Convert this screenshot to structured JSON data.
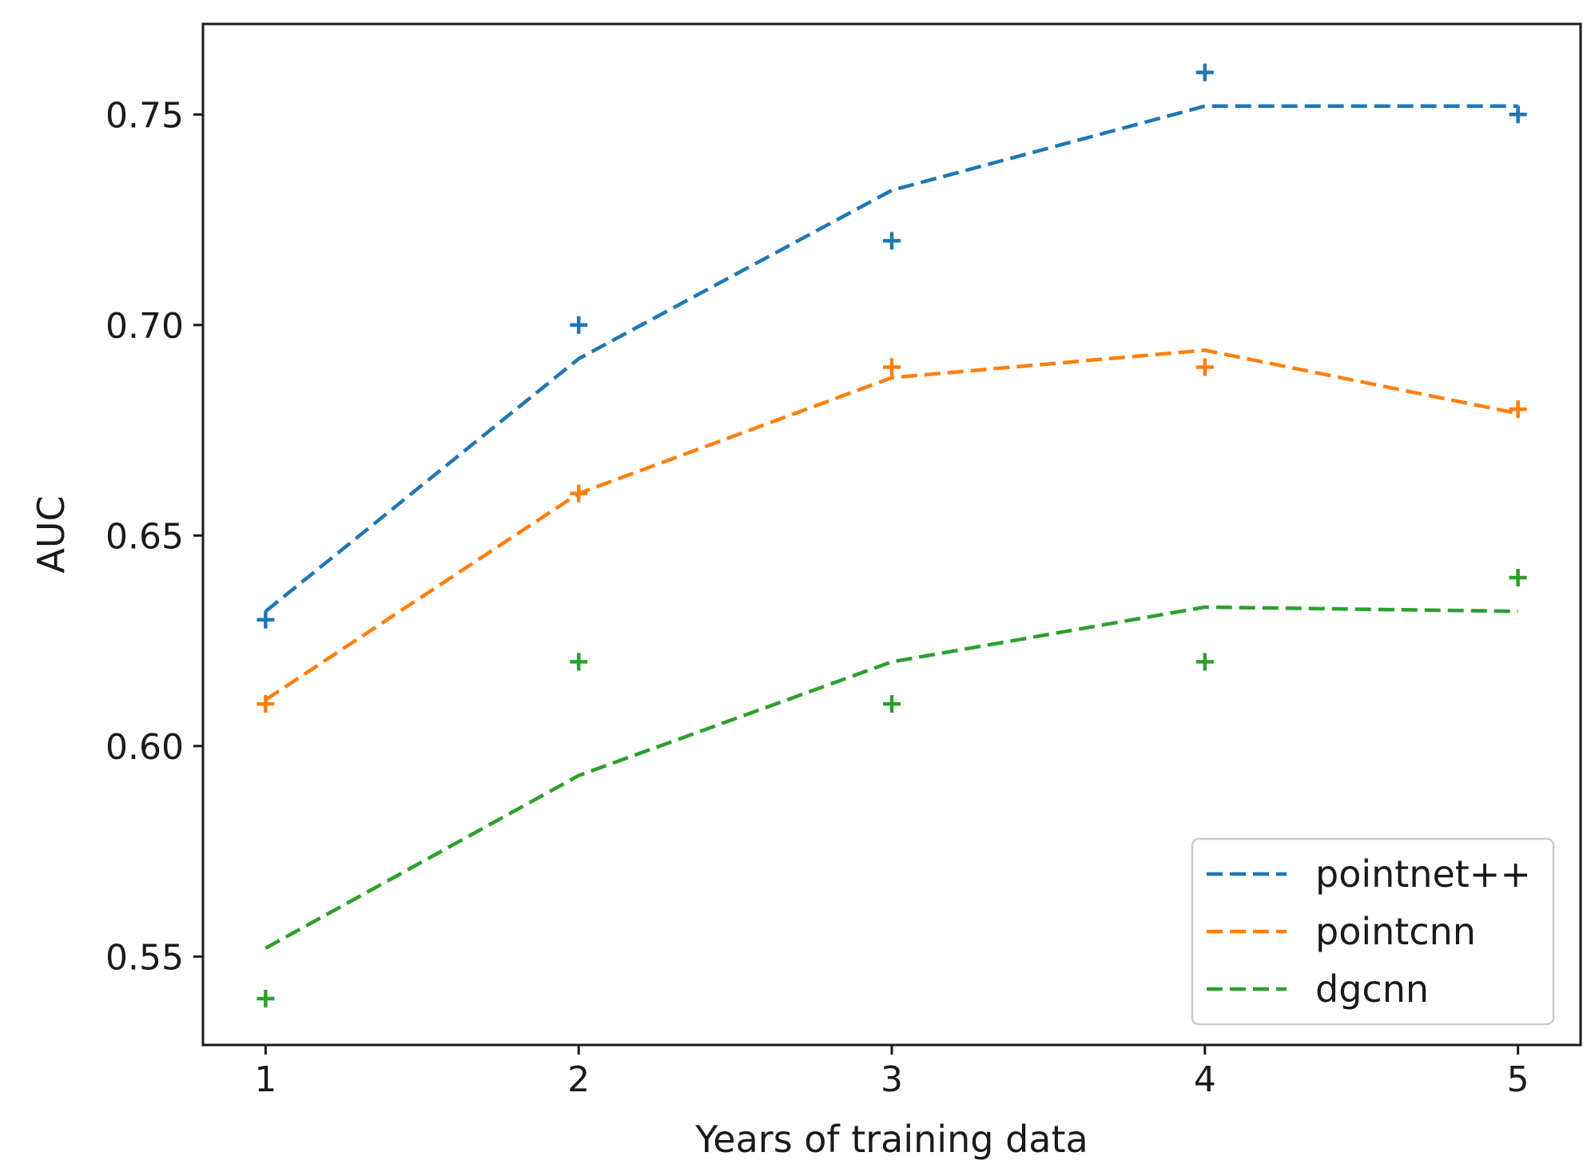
{
  "chart_data": {
    "type": "line",
    "title": "",
    "xlabel": "Years of training data",
    "ylabel": "AUC",
    "x": [
      1,
      2,
      3,
      4,
      5
    ],
    "xlim": [
      0.8,
      5.2
    ],
    "ylim": [
      0.529,
      0.7715
    ],
    "xticks": [
      1,
      2,
      3,
      4,
      5
    ],
    "xtick_labels": [
      "1",
      "2",
      "3",
      "4",
      "5"
    ],
    "yticks": [
      0.55,
      0.6,
      0.65,
      0.7,
      0.75
    ],
    "ytick_labels": [
      "0.55",
      "0.60",
      "0.65",
      "0.70",
      "0.75"
    ],
    "grid": false,
    "legend_position": "lower-right",
    "series": [
      {
        "name": "pointnet++",
        "color": "#1f77b4",
        "points": [
          0.63,
          0.7,
          0.72,
          0.76,
          0.75
        ],
        "fit": [
          0.632,
          0.692,
          0.732,
          0.752,
          0.752
        ]
      },
      {
        "name": "pointcnn",
        "color": "#ff7f0e",
        "points": [
          0.61,
          0.66,
          0.69,
          0.69,
          0.68
        ],
        "fit": [
          0.611,
          0.66,
          0.6875,
          0.694,
          0.679
        ]
      },
      {
        "name": "dgcnn",
        "color": "#2ca02c",
        "points": [
          0.54,
          0.62,
          0.61,
          0.62,
          0.64
        ],
        "fit": [
          0.552,
          0.593,
          0.62,
          0.633,
          0.632
        ]
      }
    ]
  }
}
